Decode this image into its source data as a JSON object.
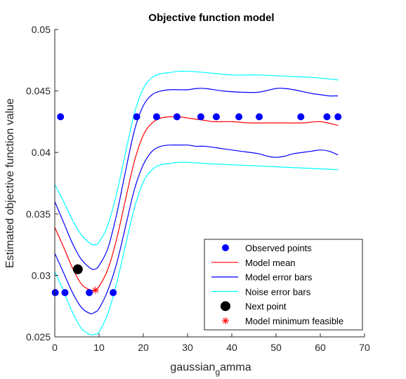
{
  "chart_data": {
    "type": "line",
    "title": "Objective function model",
    "xlabel": "gaussian_gamma",
    "xlabel_display": {
      "main": "gaussian",
      "sub": "g",
      "tail": "amma"
    },
    "ylabel": "Estimated objective function value",
    "xlim": [
      0,
      70
    ],
    "ylim": [
      0.025,
      0.05
    ],
    "xticks": [
      0,
      10,
      20,
      30,
      40,
      50,
      60,
      70
    ],
    "xtick_labels": [
      "0",
      "10",
      "20",
      "30",
      "40",
      "50",
      "60",
      "70"
    ],
    "yticks": [
      0.025,
      0.03,
      0.035,
      0.04,
      0.045,
      0.05
    ],
    "ytick_labels": [
      "0.025",
      "0.03",
      "0.035",
      "0.04",
      "0.045",
      "0.05"
    ],
    "grid": false,
    "legend_position": "bottom-right",
    "series": [
      {
        "name": "Observed points",
        "style": "marker",
        "marker": "dot",
        "color": "#0000ff",
        "x": [
          0.1,
          1.3,
          2.3,
          7.8,
          13.2,
          18.5,
          23.0,
          27.6,
          33.0,
          36.5,
          41.6,
          46.2,
          55.6,
          61.5,
          64.0
        ],
        "y": [
          0.0286,
          0.0429,
          0.0286,
          0.0286,
          0.0286,
          0.0429,
          0.0429,
          0.0429,
          0.0429,
          0.0429,
          0.0429,
          0.0429,
          0.0429,
          0.0429,
          0.0429
        ]
      },
      {
        "name": "Model mean",
        "style": "line",
        "color": "#ff0000",
        "x": [
          0,
          2,
          4,
          6,
          8,
          9,
          10,
          12,
          14,
          16,
          18,
          20,
          22,
          24,
          26,
          28,
          30,
          32,
          34,
          36,
          40,
          44,
          48,
          52,
          56,
          60,
          64
        ],
        "y": [
          0.0339,
          0.0323,
          0.0306,
          0.0293,
          0.0288,
          0.0288,
          0.0291,
          0.0305,
          0.033,
          0.0362,
          0.0393,
          0.0414,
          0.0424,
          0.0428,
          0.0429,
          0.0429,
          0.0428,
          0.0427,
          0.0426,
          0.0425,
          0.0425,
          0.0424,
          0.0424,
          0.0424,
          0.0424,
          0.0425,
          0.0422
        ]
      },
      {
        "name": "Model error bars",
        "style": "line",
        "color": "#0000ff",
        "upper": {
          "x": [
            0,
            2,
            4,
            6,
            8,
            9,
            10,
            12,
            14,
            16,
            18,
            20,
            22,
            24,
            26,
            28,
            30,
            32,
            34,
            38,
            42,
            46,
            50,
            52,
            54,
            58,
            60,
            62,
            64
          ],
          "y": [
            0.036,
            0.0343,
            0.0326,
            0.0313,
            0.0306,
            0.0305,
            0.0308,
            0.0322,
            0.035,
            0.0385,
            0.0418,
            0.0438,
            0.0447,
            0.045,
            0.0451,
            0.0451,
            0.0451,
            0.0452,
            0.0452,
            0.045,
            0.0449,
            0.0449,
            0.0452,
            0.0452,
            0.0451,
            0.0448,
            0.0447,
            0.0446,
            0.0446
          ]
        },
        "lower": {
          "x": [
            0,
            2,
            4,
            6,
            8,
            9,
            10,
            12,
            14,
            16,
            18,
            20,
            22,
            24,
            26,
            28,
            30,
            32,
            34,
            38,
            42,
            46,
            48,
            50,
            52,
            54,
            58,
            60,
            62,
            64
          ],
          "y": [
            0.0318,
            0.0302,
            0.0286,
            0.0274,
            0.0269,
            0.027,
            0.0273,
            0.0288,
            0.031,
            0.034,
            0.037,
            0.039,
            0.0401,
            0.0405,
            0.0406,
            0.0406,
            0.0406,
            0.0405,
            0.0405,
            0.0403,
            0.0401,
            0.0399,
            0.0397,
            0.0396,
            0.0397,
            0.0399,
            0.0401,
            0.0402,
            0.0401,
            0.0398
          ]
        }
      },
      {
        "name": "Noise error bars",
        "style": "line",
        "color": "#00ffff",
        "upper": {
          "x": [
            0,
            2,
            4,
            6,
            8,
            9,
            10,
            12,
            14,
            16,
            18,
            20,
            22,
            24,
            26,
            28,
            30,
            34,
            40,
            46,
            52,
            58,
            64
          ],
          "y": [
            0.0374,
            0.036,
            0.0345,
            0.0333,
            0.0326,
            0.0325,
            0.0327,
            0.0341,
            0.0367,
            0.04,
            0.0432,
            0.0452,
            0.0461,
            0.0464,
            0.0465,
            0.0466,
            0.0466,
            0.0465,
            0.0463,
            0.0463,
            0.0462,
            0.0461,
            0.0459
          ]
        },
        "lower": {
          "x": [
            0,
            2,
            4,
            6,
            8,
            9,
            10,
            12,
            14,
            16,
            18,
            20,
            22,
            24,
            26,
            28,
            30,
            34,
            40,
            46,
            52,
            58,
            64
          ],
          "y": [
            0.0303,
            0.0287,
            0.027,
            0.0257,
            0.0252,
            0.0252,
            0.0254,
            0.0269,
            0.0294,
            0.0325,
            0.0355,
            0.0376,
            0.0386,
            0.039,
            0.0391,
            0.0392,
            0.0392,
            0.0391,
            0.039,
            0.0389,
            0.0388,
            0.0387,
            0.0386
          ]
        }
      },
      {
        "name": "Next point",
        "style": "marker",
        "marker": "dot-large",
        "color": "#000000",
        "x": [
          5.2
        ],
        "y": [
          0.0305
        ]
      },
      {
        "name": "Model minimum feasible",
        "style": "marker",
        "marker": "asterisk",
        "color": "#ff0000",
        "x": [
          9.2
        ],
        "y": [
          0.0288
        ]
      }
    ]
  }
}
